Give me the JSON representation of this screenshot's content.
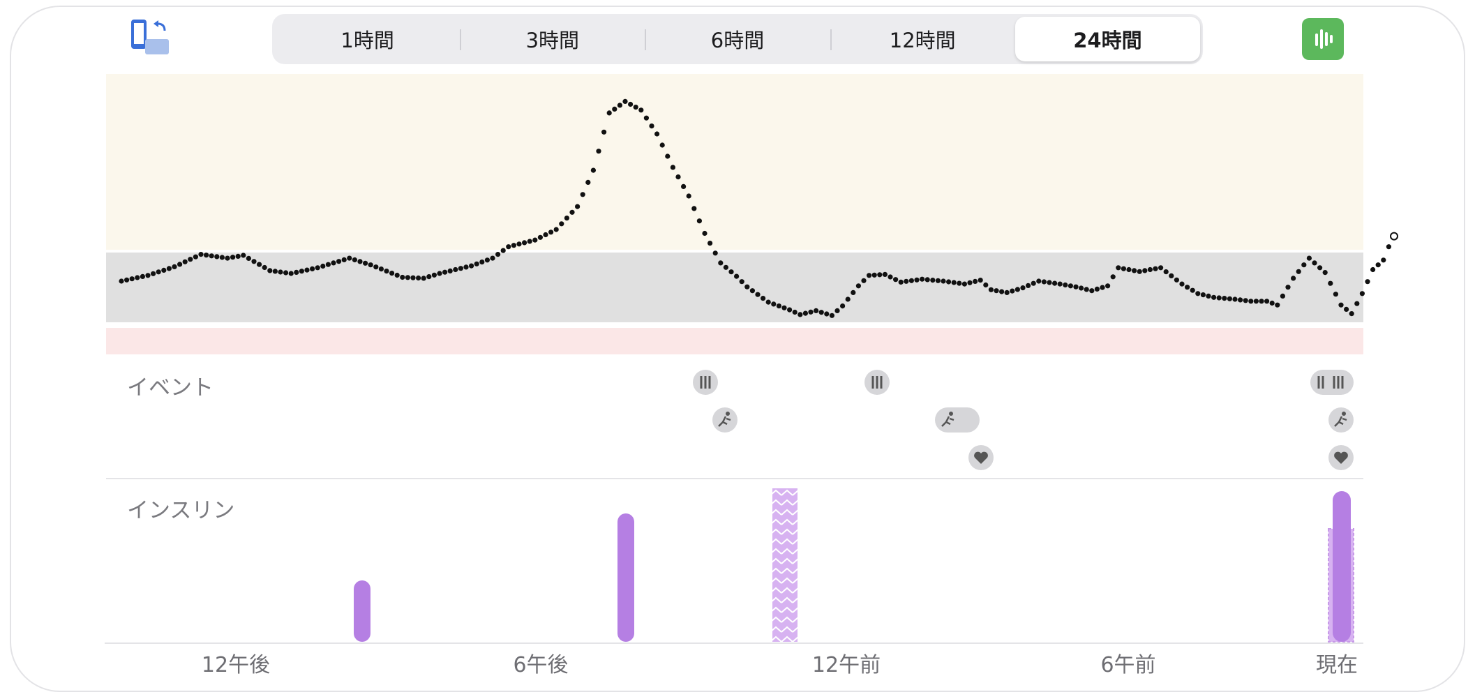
{
  "toolbar": {
    "rotate_icon": "phone-rotate-icon",
    "chart_icon": "bar-chart-icon",
    "brand_color": "#5cb85c",
    "time_ranges": [
      {
        "label": "1時間",
        "selected": false
      },
      {
        "label": "3時間",
        "selected": false
      },
      {
        "label": "6時間",
        "selected": false
      },
      {
        "label": "12時間",
        "selected": false
      },
      {
        "label": "24時間",
        "selected": true
      }
    ]
  },
  "events": {
    "label": "イベント",
    "meal_icon": "fork-knife-icon",
    "exercise_icon": "running-icon",
    "health_icon": "heart-icon"
  },
  "insulin": {
    "label": "インスリン",
    "bar_color": "#b57fe3"
  },
  "x_axis": {
    "labels": [
      "12午後",
      "6午後",
      "12午前",
      "6午前",
      "現在"
    ]
  },
  "chart_data": {
    "type": "scatter",
    "title": "",
    "xlabel": "",
    "ylabel": "",
    "x_ticks": [
      "12午後",
      "6午後",
      "12午前",
      "6午前",
      "現在"
    ],
    "zones": {
      "high_color": "#fbf7ec",
      "target_color": "#e0e0e0",
      "low_color": "#fbe7e7"
    },
    "glucose_points": [
      [
        -23.0,
        46
      ],
      [
        -22.5,
        52
      ],
      [
        -22.0,
        61
      ],
      [
        -21.5,
        74
      ],
      [
        -21.0,
        70
      ],
      [
        -20.7,
        73
      ],
      [
        -20.2,
        57
      ],
      [
        -19.8,
        54
      ],
      [
        -19.3,
        60
      ],
      [
        -18.7,
        70
      ],
      [
        -18.3,
        63
      ],
      [
        -17.7,
        50
      ],
      [
        -17.3,
        49
      ],
      [
        -17.0,
        54
      ],
      [
        -16.4,
        62
      ],
      [
        -16.0,
        70
      ],
      [
        -15.7,
        82
      ],
      [
        -15.2,
        89
      ],
      [
        -14.8,
        100
      ],
      [
        -14.4,
        124
      ],
      [
        -14.1,
        162
      ],
      [
        -13.8,
        222
      ],
      [
        -13.5,
        234
      ],
      [
        -13.2,
        225
      ],
      [
        -12.9,
        200
      ],
      [
        -12.6,
        165
      ],
      [
        -12.3,
        135
      ],
      [
        -12.0,
        96
      ],
      [
        -11.7,
        65
      ],
      [
        -11.4,
        51
      ],
      [
        -11.2,
        40
      ],
      [
        -10.8,
        24
      ],
      [
        -10.4,
        16
      ],
      [
        -10.2,
        11
      ],
      [
        -9.9,
        15
      ],
      [
        -9.6,
        10
      ],
      [
        -9.4,
        20
      ],
      [
        -9.1,
        41
      ],
      [
        -8.9,
        52
      ],
      [
        -8.6,
        53
      ],
      [
        -8.3,
        45
      ],
      [
        -7.9,
        48
      ],
      [
        -7.5,
        46
      ],
      [
        -7.1,
        43
      ],
      [
        -6.8,
        47
      ],
      [
        -6.6,
        37
      ],
      [
        -6.3,
        34
      ],
      [
        -6.0,
        39
      ],
      [
        -5.7,
        46
      ],
      [
        -5.3,
        43
      ],
      [
        -5.0,
        40
      ],
      [
        -4.7,
        36
      ],
      [
        -4.4,
        41
      ],
      [
        -4.2,
        60
      ],
      [
        -3.8,
        56
      ],
      [
        -3.4,
        60
      ],
      [
        -3.0,
        43
      ],
      [
        -2.7,
        33
      ],
      [
        -2.4,
        29
      ],
      [
        -2.0,
        27
      ],
      [
        -1.7,
        25
      ],
      [
        -1.4,
        25
      ],
      [
        -1.2,
        21
      ],
      [
        -0.9,
        49
      ],
      [
        -0.6,
        70
      ],
      [
        -0.3,
        55
      ],
      [
        0.0,
        21
      ],
      [
        0.2,
        12
      ],
      [
        0.4,
        33
      ],
      [
        0.6,
        58
      ],
      [
        0.8,
        68
      ],
      [
        0.9,
        82
      ],
      [
        1.0,
        93
      ]
    ],
    "insulin_bars": [
      {
        "time": "-20.8",
        "amount": 1.0,
        "style": "bolus"
      },
      {
        "time": "-13.8",
        "amount": 2.0,
        "style": "bolus"
      },
      {
        "time": "-10.1",
        "amount": 2.4,
        "style": "temp-basal"
      },
      {
        "time": "0.0",
        "amount": 2.3,
        "style": "bolus"
      }
    ]
  }
}
